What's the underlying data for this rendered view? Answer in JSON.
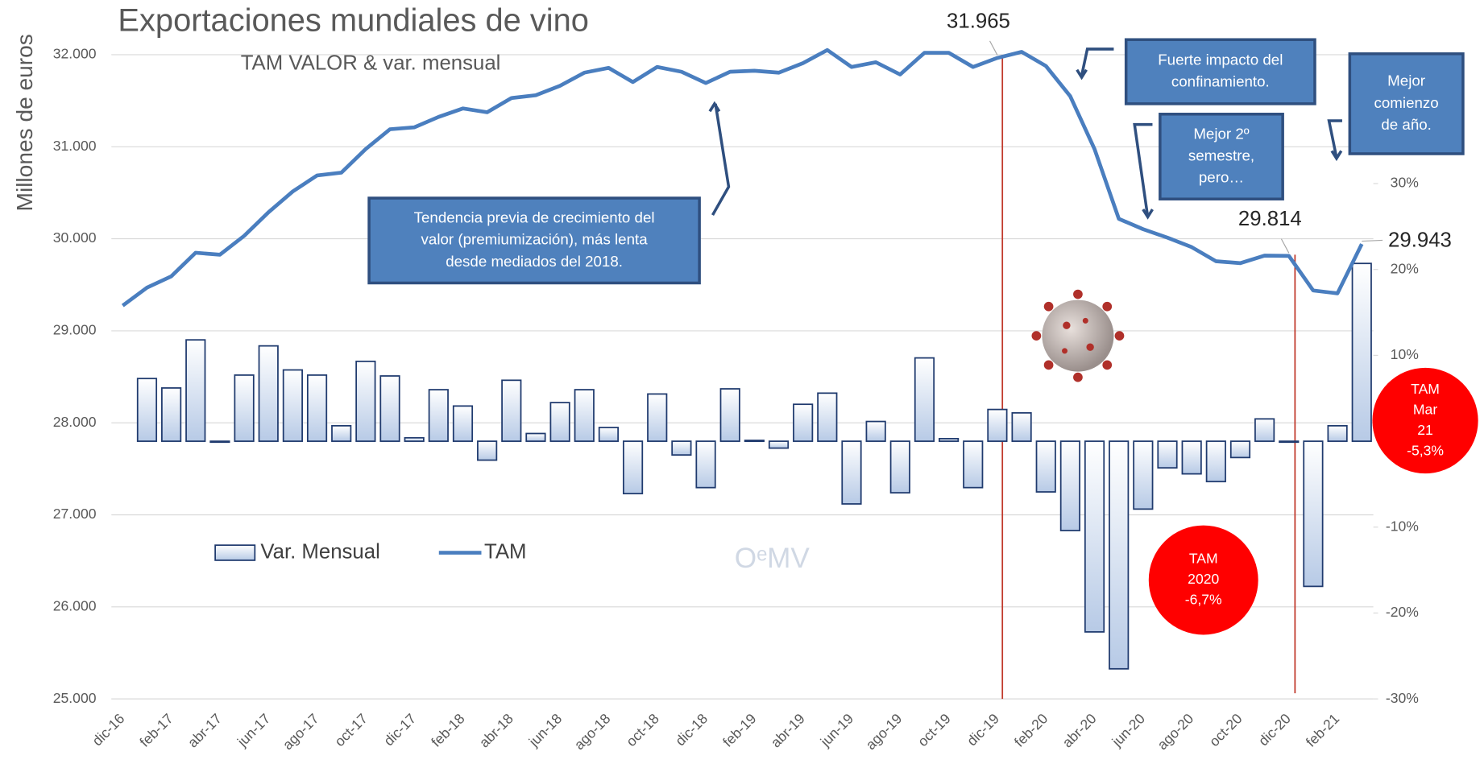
{
  "chart_data": {
    "type": "bar-line",
    "title": "Exportaciones mundiales de vino",
    "subtitle": "TAM VALOR & var. mensual",
    "ylabel": "Millones de euros",
    "categories": [
      "dic-16",
      null,
      "feb-17",
      null,
      "abr-17",
      null,
      "jun-17",
      null,
      "ago-17",
      null,
      "oct-17",
      null,
      "dic-17",
      null,
      "feb-18",
      null,
      "abr-18",
      null,
      "jun-18",
      null,
      "ago-18",
      null,
      "oct-18",
      null,
      "dic-18",
      null,
      "feb-19",
      null,
      "abr-19",
      null,
      "jun-19",
      null,
      "ago-19",
      null,
      "oct-19",
      null,
      "dic-19",
      null,
      "feb-20",
      null,
      "abr-20",
      null,
      "jun-20",
      null,
      "ago-20",
      null,
      "oct-20",
      null,
      "dic-20",
      null,
      "feb-21",
      null
    ],
    "ylim": [
      25000,
      32000
    ],
    "yticks": [
      {
        "value": 25000,
        "label": "25.000"
      },
      {
        "value": 26000,
        "label": "26.000"
      },
      {
        "value": 27000,
        "label": "27.000"
      },
      {
        "value": 28000,
        "label": "28.000"
      },
      {
        "value": 29000,
        "label": "29.000"
      },
      {
        "value": 30000,
        "label": "30.000"
      },
      {
        "value": 31000,
        "label": "31.000"
      },
      {
        "value": 32000,
        "label": "32.000"
      }
    ],
    "y2lim": [
      -30,
      45
    ],
    "y2ticks": [
      {
        "value": -30,
        "label": "-30%"
      },
      {
        "value": -20,
        "label": "-20%"
      },
      {
        "value": -10,
        "label": "-10%"
      },
      {
        "value": 10,
        "label": "10%"
      },
      {
        "value": 20,
        "label": "20%"
      },
      {
        "value": 30,
        "label": "30%"
      }
    ],
    "grid": true,
    "legend": "lower-left",
    "series": [
      {
        "name": "Var. Mensual",
        "type": "bar",
        "axis": "y2",
        "color": "#c9d7ea",
        "edge_color": "#1f3a6e",
        "values": [
          null,
          7.3,
          6.2,
          11.8,
          -0.1,
          7.7,
          11.1,
          8.3,
          7.7,
          1.8,
          9.3,
          7.6,
          0.4,
          6.0,
          4.1,
          -2.2,
          7.1,
          0.9,
          4.5,
          6.0,
          1.6,
          -6.1,
          5.5,
          -1.6,
          -5.4,
          6.1,
          0.1,
          -0.8,
          4.3,
          5.6,
          -7.3,
          2.3,
          -6.0,
          9.7,
          0.3,
          -5.4,
          3.7,
          3.3,
          -5.9,
          -10.4,
          -22.2,
          -26.5,
          -7.9,
          -3.1,
          -3.8,
          -4.7,
          -1.9,
          2.6,
          -0.1,
          -16.9,
          1.8,
          20.7
        ]
      },
      {
        "name": "TAM",
        "type": "line",
        "color": "#4a7ebf",
        "values": [
          29274,
          29469,
          29592,
          29848,
          29827,
          30032,
          30288,
          30514,
          30688,
          30719,
          30975,
          31190,
          31211,
          31324,
          31416,
          31375,
          31529,
          31560,
          31662,
          31805,
          31857,
          31703,
          31867,
          31815,
          31692,
          31815,
          31826,
          31805,
          31908,
          32051,
          31867,
          31918,
          31785,
          32021,
          32021,
          31867,
          31965,
          32031,
          31877,
          31549,
          30975,
          30217,
          30104,
          30012,
          29909,
          29756,
          29735,
          29817,
          29814,
          29438,
          29407,
          29943
        ],
        "value_labels": [
          null,
          null,
          null,
          null,
          null,
          null,
          null,
          null,
          null,
          null,
          null,
          null,
          null,
          null,
          null,
          null,
          null,
          null,
          null,
          null,
          null,
          null,
          null,
          null,
          null,
          null,
          null,
          null,
          null,
          null,
          null,
          null,
          null,
          null,
          null,
          null,
          "31.965",
          null,
          null,
          null,
          null,
          null,
          null,
          null,
          null,
          null,
          null,
          null,
          "29.814",
          null,
          null,
          "29.943"
        ]
      }
    ],
    "annotations": [
      {
        "lines": [
          "Tendencia previa de crecimiento  del",
          "valor (premiumización), más lenta",
          "desde mediados del 2018."
        ]
      },
      {
        "lines": [
          "Fuerte impacto del",
          "confinamiento."
        ]
      },
      {
        "lines": [
          "Mejor 2º",
          "semestre,",
          "pero…"
        ]
      },
      {
        "lines": [
          "Mejor",
          "comienzo",
          "de año."
        ]
      },
      {
        "lines": [
          "TAM",
          "2020",
          "-6,7%"
        ]
      },
      {
        "lines": [
          "TAM",
          "Mar",
          "21",
          "-5,3%"
        ]
      }
    ],
    "watermark": "OᵉMV"
  }
}
